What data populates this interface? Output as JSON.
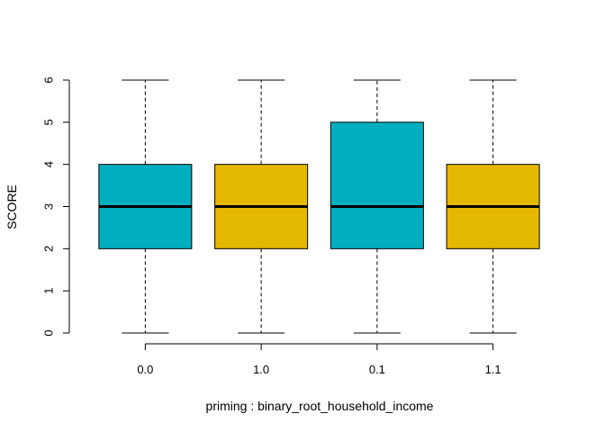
{
  "chart_data": {
    "type": "boxplot",
    "title": "",
    "xlabel": "priming : binary_root_household_income",
    "ylabel": "SCORE",
    "ylim": [
      0,
      6
    ],
    "yticks": [
      "0",
      "1",
      "2",
      "3",
      "4",
      "5",
      "6"
    ],
    "categories": [
      "0.0",
      "1.0",
      "0.1",
      "1.1"
    ],
    "boxes": [
      {
        "category": "0.0",
        "whisker_low": 0,
        "q1": 2,
        "median": 3,
        "q3": 4,
        "whisker_high": 6,
        "color": "#00AEBF"
      },
      {
        "category": "1.0",
        "whisker_low": 0,
        "q1": 2,
        "median": 3,
        "q3": 4,
        "whisker_high": 6,
        "color": "#E5B800"
      },
      {
        "category": "0.1",
        "whisker_low": 0,
        "q1": 2,
        "median": 3,
        "q3": 5,
        "whisker_high": 6,
        "color": "#00AEBF"
      },
      {
        "category": "1.1",
        "whisker_low": 0,
        "q1": 2,
        "median": 3,
        "q3": 4,
        "whisker_high": 6,
        "color": "#E5B800"
      }
    ]
  }
}
